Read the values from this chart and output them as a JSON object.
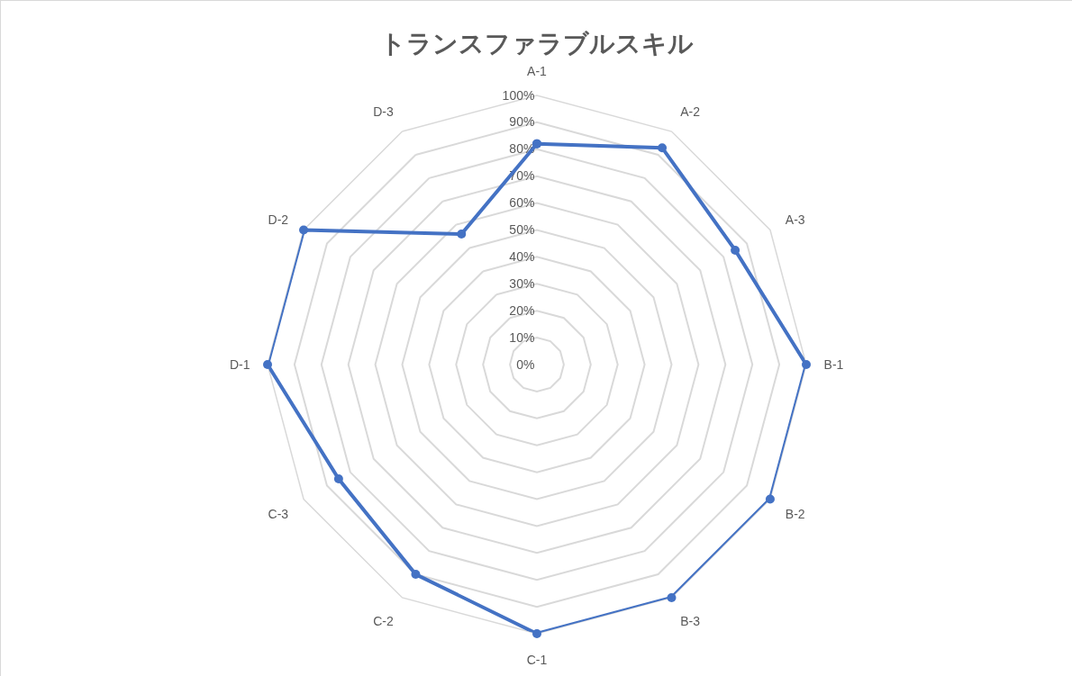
{
  "chart_data": {
    "type": "radar",
    "title": "トランスファラブルスキル",
    "categories": [
      "A-1",
      "A-2",
      "A-3",
      "B-1",
      "B-2",
      "B-3",
      "C-1",
      "C-2",
      "C-3",
      "D-1",
      "D-2",
      "D-3"
    ],
    "series": [
      {
        "color": "#4472c4",
        "values": [
          82,
          93,
          85,
          100,
          100,
          100,
          100,
          90,
          85,
          100,
          100,
          56
        ]
      }
    ],
    "ylim": [
      0,
      100
    ],
    "yticks": [
      {
        "value": 0,
        "label": "0%"
      },
      {
        "value": 10,
        "label": "10%"
      },
      {
        "value": 20,
        "label": "20%"
      },
      {
        "value": 30,
        "label": "30%"
      },
      {
        "value": 40,
        "label": "40%"
      },
      {
        "value": 50,
        "label": "50%"
      },
      {
        "value": 60,
        "label": "60%"
      },
      {
        "value": 70,
        "label": "70%"
      },
      {
        "value": 80,
        "label": "80%"
      },
      {
        "value": 90,
        "label": "90%"
      },
      {
        "value": 100,
        "label": "100%"
      }
    ],
    "grid": "y",
    "marker": "circle",
    "line_style": "solid"
  }
}
